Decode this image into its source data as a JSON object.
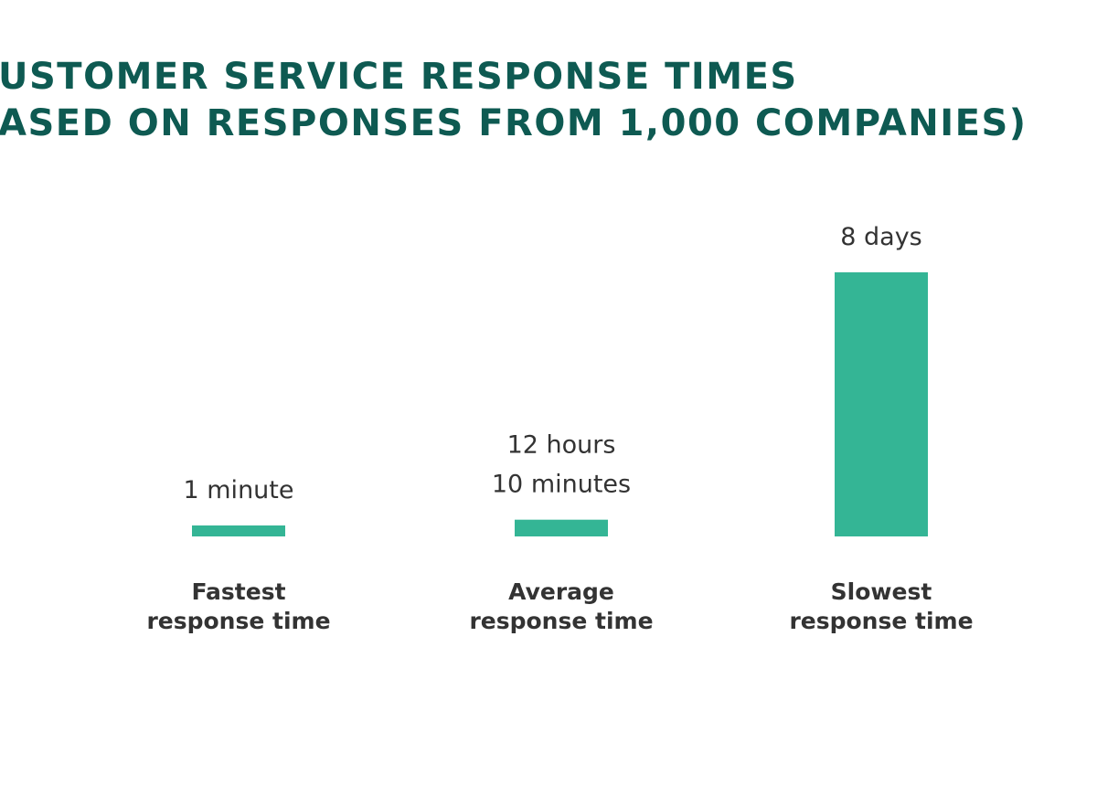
{
  "chart_data": {
    "type": "bar",
    "title": [
      "USTOMER SERVICE RESPONSE TIMES",
      "ASED ON RESPONSES FROM 1,000 COMPANIES)"
    ],
    "categories": [
      [
        "Fastest",
        "response time"
      ],
      [
        "Average",
        "response time"
      ],
      [
        "Slowest",
        "response time"
      ]
    ],
    "values": [
      1,
      730,
      11520
    ],
    "value_labels": [
      [
        "1 minute"
      ],
      [
        "12 hours",
        "10 minutes"
      ],
      [
        "8 days"
      ]
    ],
    "color": "#34b595"
  }
}
